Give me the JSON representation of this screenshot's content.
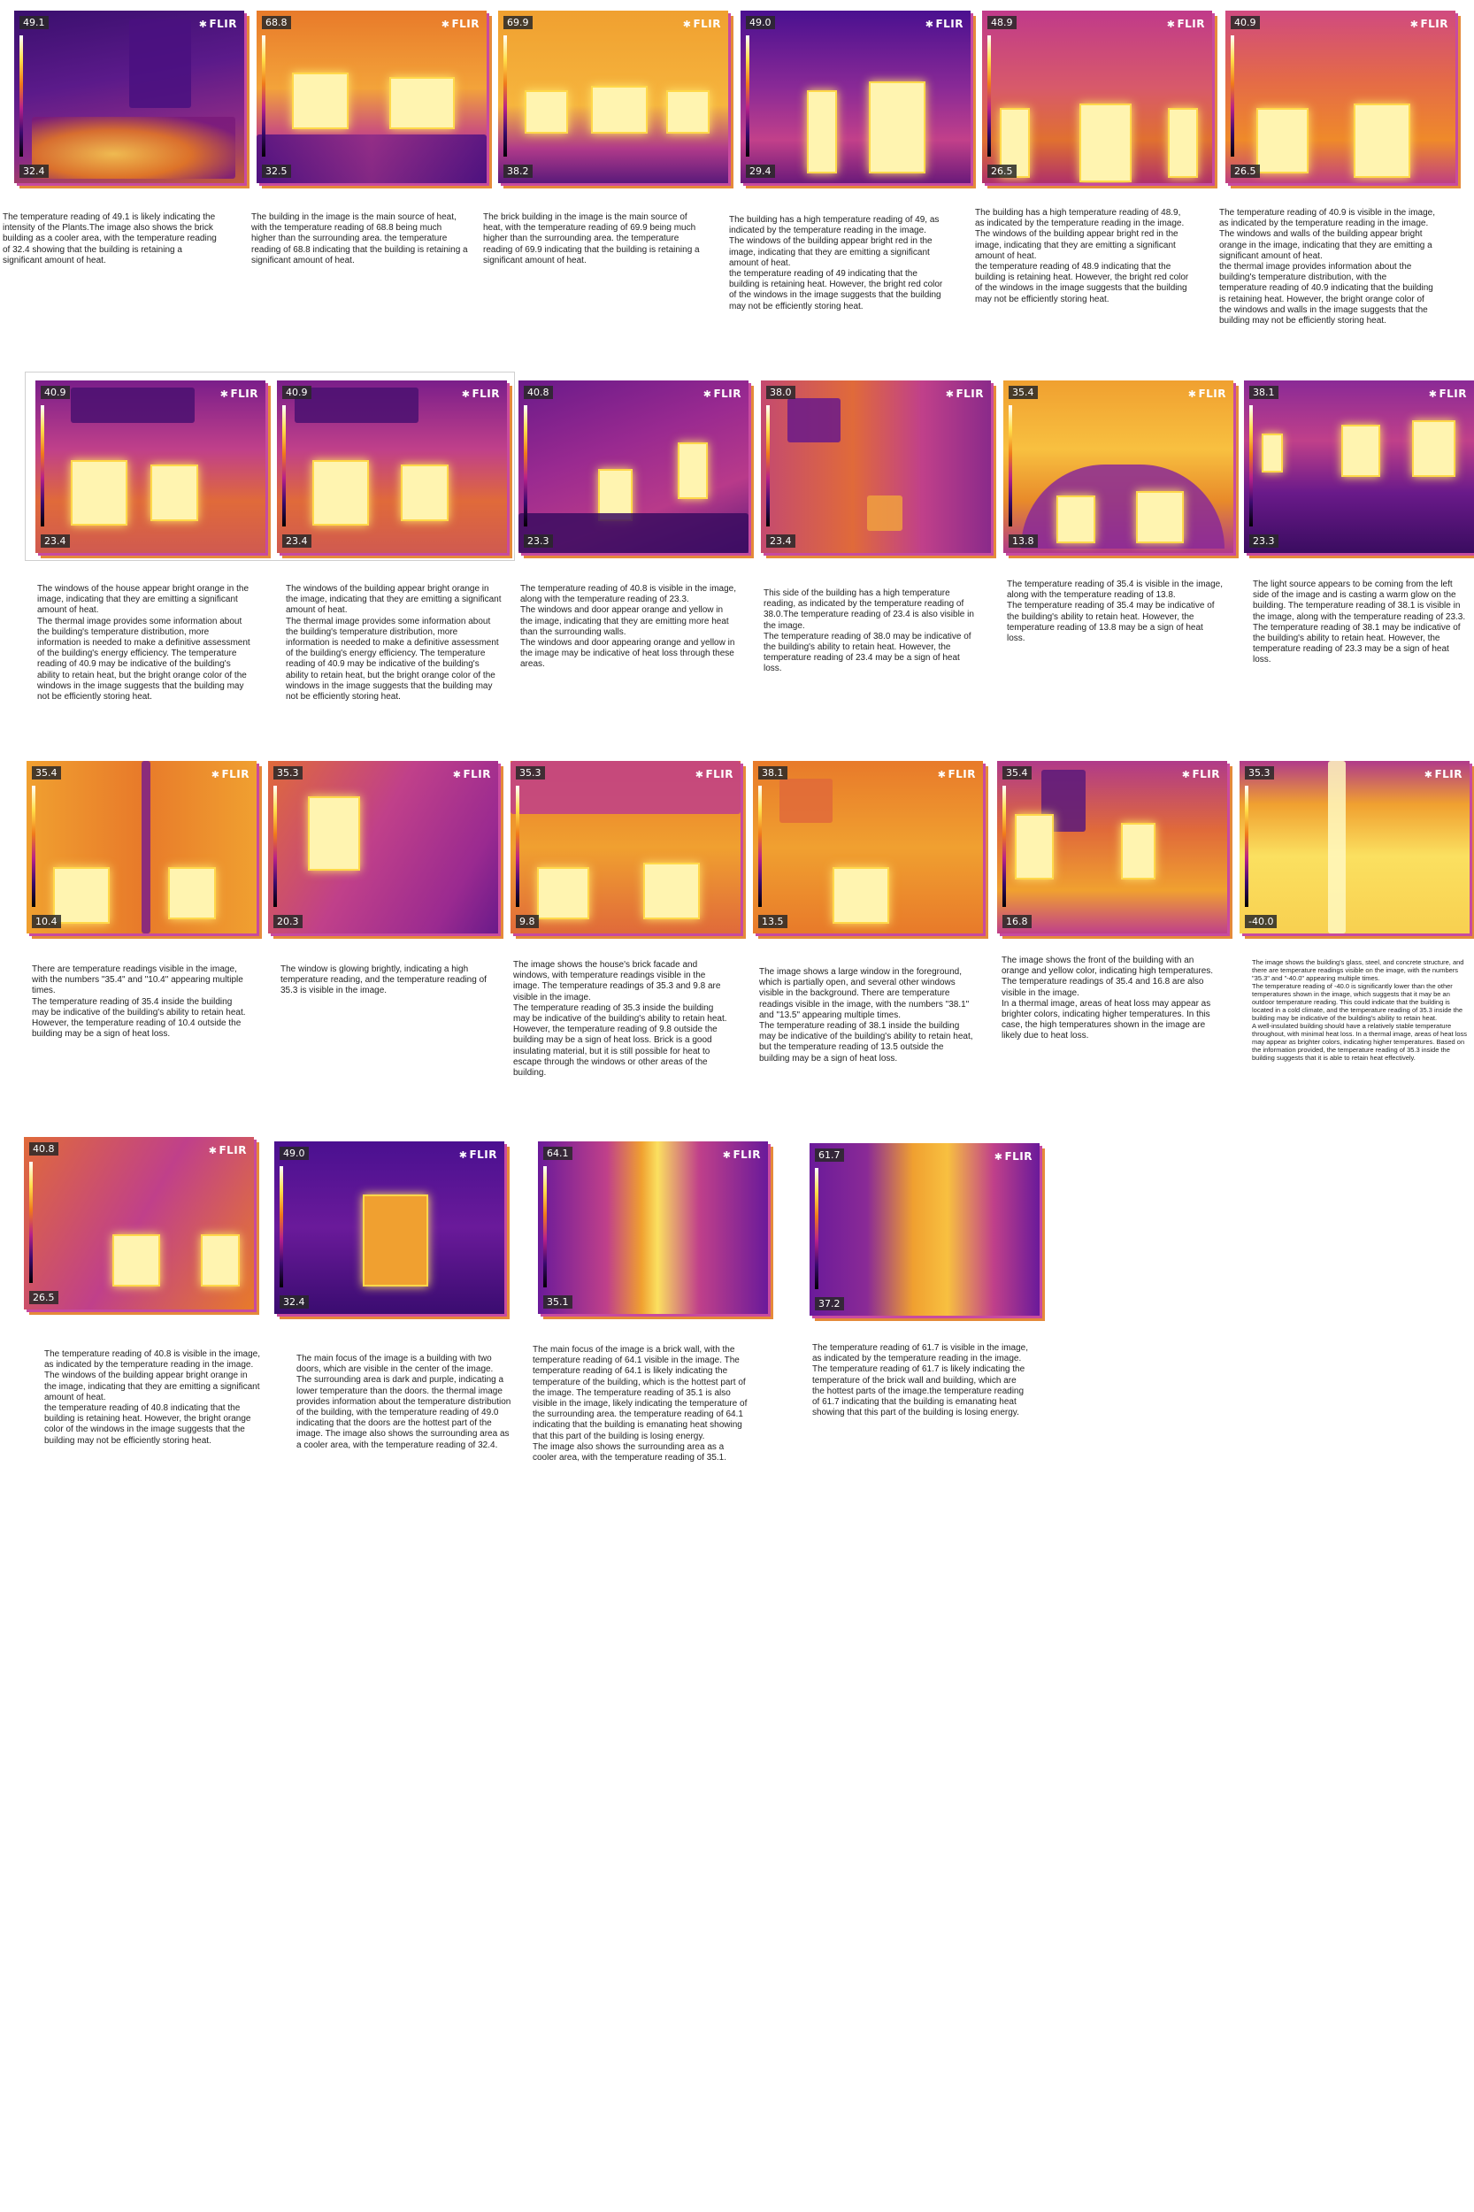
{
  "brand": "FLIR",
  "cards": [
    {
      "id": "c1",
      "tmax": "49.1",
      "tmin": "32.4",
      "caption": "The temperature reading of 49.1 is likely indicating the intensity of the Plants.The image also shows the brick building as a cooler area, with the temperature reading of 32.4 showing that the building is retaining a significant amount of heat."
    },
    {
      "id": "c2",
      "tmax": "68.8",
      "tmin": "32.5",
      "caption": "The building in the image is the main source of heat, with the temperature reading of 68.8 being much higher than the surrounding area. the temperature reading of 68.8 indicating that the building is retaining a significant amount of heat."
    },
    {
      "id": "c3",
      "tmax": "69.9",
      "tmin": "38.2",
      "caption": "The brick building in the image is the main source of heat, with the temperature reading of 69.9 being much higher than the surrounding area. the temperature reading of 69.9 indicating that the building is retaining a significant amount of heat."
    },
    {
      "id": "c4",
      "tmax": "49.0",
      "tmin": "29.4",
      "caption": "The building has a high temperature reading of 49, as indicated by the temperature reading in the image.\nThe windows of the building appear bright red in the image, indicating that they are emitting a significant amount of heat.\nthe temperature reading of 49 indicating that the building is retaining heat. However, the bright red color of the windows in the image suggests that the building may not be efficiently storing heat."
    },
    {
      "id": "c5",
      "tmax": "48.9",
      "tmin": "26.5",
      "caption": "The building has a high temperature reading of 48.9, as indicated by the temperature reading in the image.\nThe windows of the building appear bright red in the image, indicating that they are emitting a significant amount of heat.\nthe temperature reading of 48.9 indicating that the building is retaining heat. However, the bright red color of the windows in the image suggests that the building may not be efficiently storing heat."
    },
    {
      "id": "c6",
      "tmax": "40.9",
      "tmin": "26.5",
      "caption": "The temperature reading of 40.9 is visible in the image, as indicated by the temperature reading in the image.\nThe windows and walls of the building appear bright orange in the image, indicating that they are emitting a significant amount of heat.\n the thermal image provides information about the building's temperature distribution, with the temperature reading of 40.9 indicating that the building is retaining heat. However, the bright orange color of the windows and walls in the image suggests that the building may not be efficiently storing heat."
    },
    {
      "id": "c7",
      "tmax": "40.9",
      "tmin": "23.4",
      "caption": "The windows of the house appear bright orange in the image, indicating that they are emitting a significant amount of heat.\nThe thermal image provides some information about the building's temperature distribution, more information is needed to make a definitive assessment of the building's energy efficiency. The temperature reading of 40.9 may be indicative of the building's ability to retain heat, but the bright orange color of the windows in the image suggests that the building may not be efficiently storing heat."
    },
    {
      "id": "c8",
      "tmax": "40.9",
      "tmin": "23.4",
      "caption": "The windows of the building appear bright orange in the image, indicating that they are emitting a significant amount of heat.\nThe thermal image provides some information about the building's temperature distribution, more information is needed to make a definitive assessment of the building's energy efficiency. The temperature reading of 40.9 may be indicative of the building's ability to retain heat, but the bright orange color of the windows in the image suggests that the building may not be efficiently storing heat."
    },
    {
      "id": "c9",
      "tmax": "40.8",
      "tmin": "23.3",
      "caption": "The temperature reading of 40.8 is visible in the image, along with the temperature reading of 23.3.\nThe windows and door appear orange and yellow in the image, indicating that they are emitting more heat than the surrounding walls.\nThe windows and door appearing orange and yellow in the image may be indicative of heat loss through these areas."
    },
    {
      "id": "c10",
      "tmax": "38.0",
      "tmin": "23.4",
      "caption": "This side of the building has a high temperature reading, as indicated by the temperature reading of 38.0.The temperature reading of 23.4 is also visible in the image.\nThe temperature reading of 38.0 may be indicative of the building's ability to retain heat. However, the temperature reading of 23.4 may be a sign of heat loss."
    },
    {
      "id": "c11",
      "tmax": "35.4",
      "tmin": "13.8",
      "caption": "The temperature reading of 35.4 is visible in the image, along with the temperature reading of 13.8.\nThe temperature reading of 35.4 may be indicative of the building's ability to retain heat. However, the temperature reading of 13.8 may be a sign of heat loss."
    },
    {
      "id": "c12",
      "tmax": "38.1",
      "tmin": "23.3",
      "caption": "The light source appears to be coming from the left side of the image and is casting a warm glow on the building. The temperature reading of 38.1 is visible in the image, along with the temperature reading of 23.3.\nThe temperature reading of 38.1 may be indicative of the building's ability to retain heat. However, the temperature reading of 23.3 may be a sign of heat loss."
    },
    {
      "id": "c13",
      "tmax": "35.4",
      "tmin": "10.4",
      "caption": "There are temperature readings visible in the image, with the numbers \"35.4\" and \"10.4\" appearing multiple times.\nThe temperature reading of 35.4 inside the building may be indicative of the building's ability to retain heat. However, the temperature reading of 10.4 outside the building may be a sign of heat loss."
    },
    {
      "id": "c14",
      "tmax": "35.3",
      "tmin": "20.3",
      "caption": "The window is glowing brightly, indicating a high temperature reading, and the temperature reading of 35.3 is visible in the image."
    },
    {
      "id": "c15",
      "tmax": "35.3",
      "tmin": "9.8",
      "caption": "The image shows the house's brick facade and windows, with temperature readings visible in the image. The temperature readings of 35.3 and 9.8 are visible in the image.\nThe temperature reading of 35.3 inside the building may be indicative of the building's ability to retain heat. However, the temperature reading of 9.8 outside the building may be a sign of heat loss. Brick is a good insulating material, but it is still possible for heat to escape through the windows or other areas of the building."
    },
    {
      "id": "c16",
      "tmax": "38.1",
      "tmin": "13.5",
      "caption": "The image shows a large window in the foreground, which is partially open, and several other windows visible in the background. There are temperature readings visible in the image, with the numbers \"38.1\" and \"13.5\" appearing multiple times.\nThe temperature reading of 38.1 inside the building may be indicative of the building's ability to retain heat, but the temperature reading of 13.5 outside the building may be a sign of heat loss."
    },
    {
      "id": "c17",
      "tmax": "35.4",
      "tmin": "16.8",
      "caption": "The image shows the front of the building with an orange and yellow color, indicating high temperatures. The temperature readings of 35.4 and 16.8 are also visible in the image.\nIn a thermal image, areas of heat loss may appear as brighter colors, indicating higher temperatures. In this case, the high temperatures shown in the image are likely due to heat loss."
    },
    {
      "id": "c18",
      "tmax": "35.3",
      "tmin": "-40.0",
      "caption": "The image shows the building's glass, steel, and concrete structure, and there are temperature readings visible on the image, with the numbers \"35.3\" and \"-40.0\" appearing multiple times.\nThe temperature reading of -40.0 is significantly lower than the other temperatures shown in the image, which suggests that it may be an outdoor temperature reading. This could indicate that the building is located in a cold climate, and the temperature reading of 35.3 inside the building may be indicative of the building's ability to retain heat.\nA well-insulated building should have a relatively stable temperature throughout, with minimal heat loss. In a thermal image, areas of heat loss may appear as brighter colors, indicating higher temperatures. Based on the information provided, the temperature reading of 35.3 inside the building suggests that it is able to retain heat effectively."
    },
    {
      "id": "c19",
      "tmax": "40.8",
      "tmin": "26.5",
      "caption": "The temperature reading of 40.8 is visible in the image, as indicated by the temperature reading in the image. The windows of the building appear bright orange in the image, indicating that they are emitting a significant amount of heat.\nthe temperature reading of 40.8 indicating that the building is retaining heat. However, the bright orange color of the windows in the image suggests that the building may not be efficiently storing heat."
    },
    {
      "id": "c20",
      "tmax": "49.0",
      "tmin": "32.4",
      "caption": "The main focus of the image is a building with two doors, which are visible in the center of the image.\nThe surrounding area is dark and purple, indicating a lower temperature than the doors. the thermal image provides information about the temperature distribution of the building, with the temperature reading of 49.0 indicating that the doors are the hottest part of the image. The image also shows the surrounding area as a cooler area, with the temperature reading of 32.4."
    },
    {
      "id": "c21",
      "tmax": "64.1",
      "tmin": "35.1",
      "caption": "The main focus of the image is a brick wall, with the temperature reading of 64.1 visible in the image. The temperature reading of 64.1 is likely indicating the temperature of the building, which is the hottest part of the image. The temperature reading of 35.1 is also visible in the image, likely indicating the temperature of the surrounding area.  the temperature reading of 64.1 indicating that the building is emanating heat showing that this part of the building is losing energy.\nThe image also shows the surrounding area as a cooler area, with the temperature reading of 35.1."
    },
    {
      "id": "c22",
      "tmax": "61.7",
      "tmin": "37.2",
      "caption": "The temperature reading of 61.7 is visible in the image, as indicated by the temperature reading in the image. The temperature reading of 61.7 is likely indicating the temperature of the brick wall and building, which are the hottest parts of the image.the temperature reading of 61.7 indicating that the building is emanating heat showing that this part of the building is losing energy."
    }
  ]
}
